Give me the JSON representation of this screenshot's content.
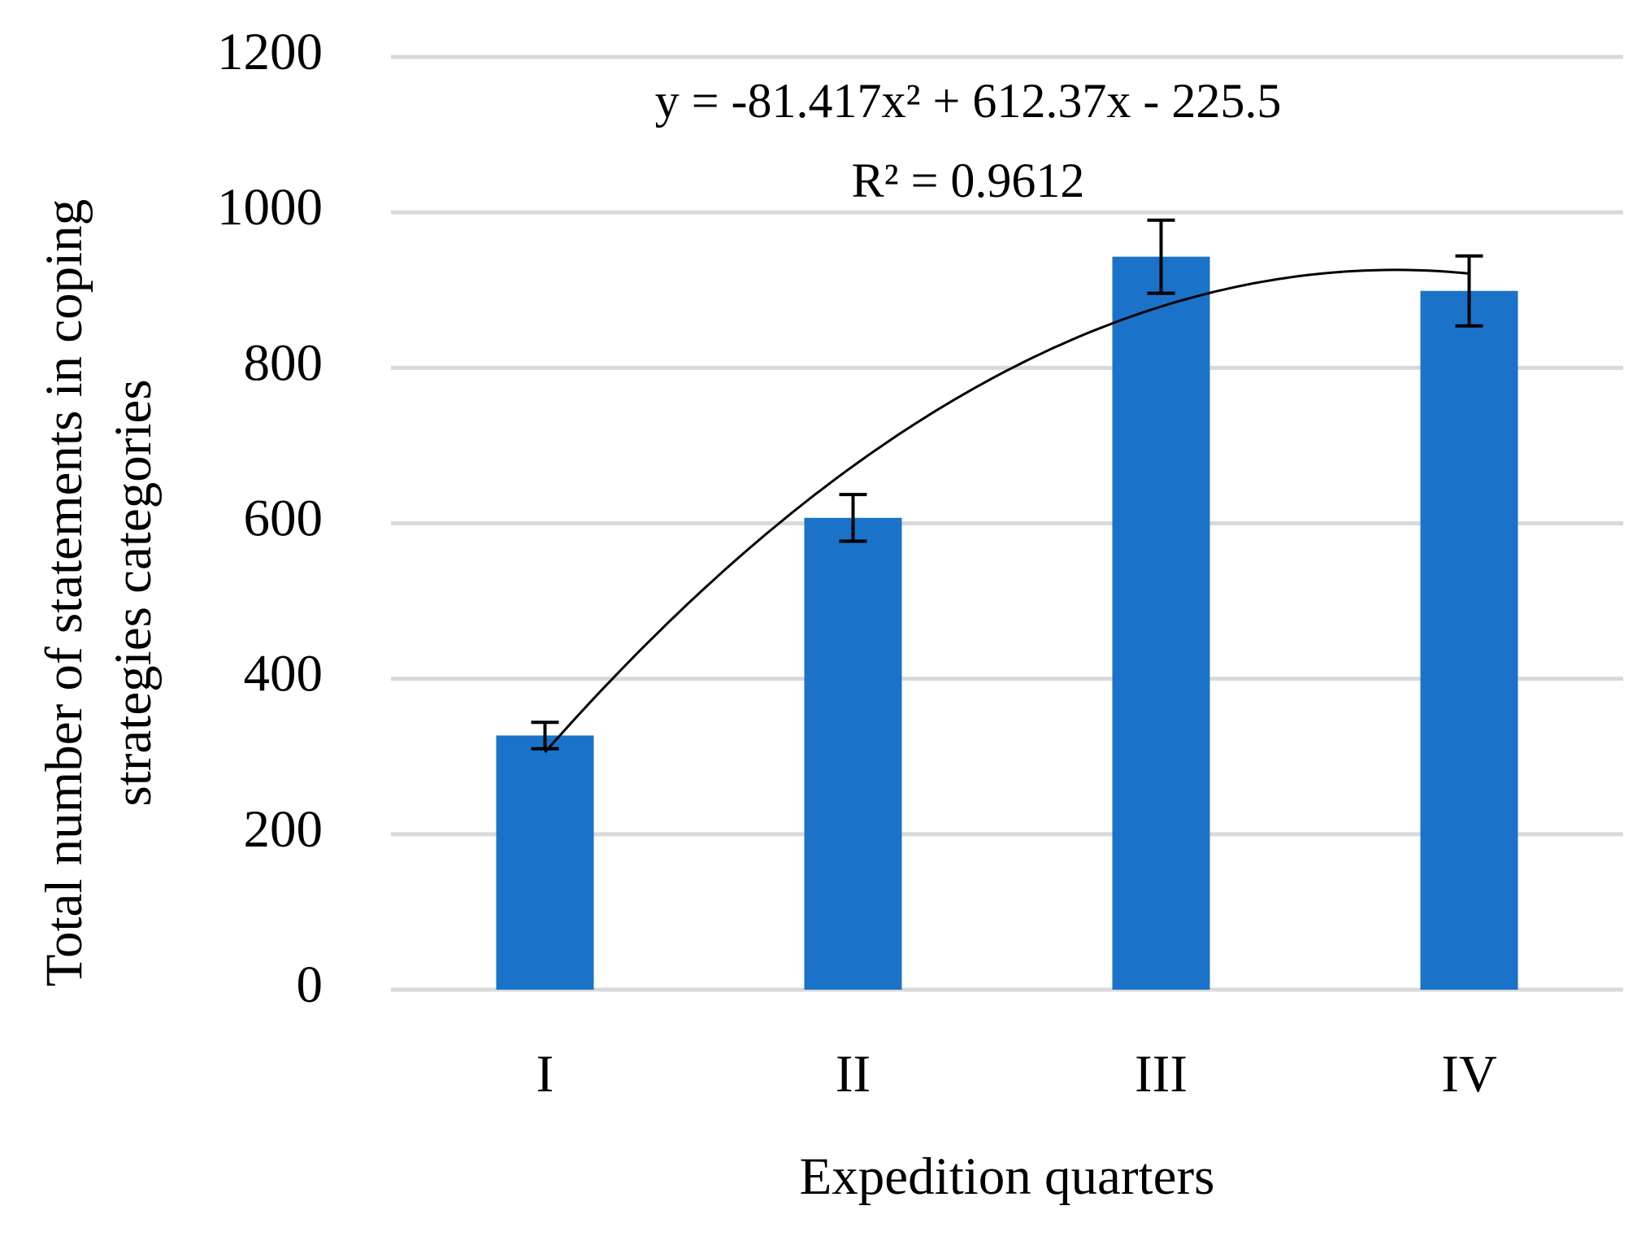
{
  "chart_data": {
    "type": "bar",
    "categories": [
      "I",
      "II",
      "III",
      "IV"
    ],
    "values": [
      327,
      607,
      943,
      899
    ],
    "errors": [
      17,
      30,
      47,
      45
    ],
    "color": "#1a73c8",
    "ylim": [
      0,
      1200
    ],
    "yticks": [
      0,
      200,
      400,
      600,
      800,
      1000,
      1200
    ],
    "grid": true,
    "xlabel": "Expedition quarters",
    "ylabel": [
      "Total number of statements in coping",
      "strategies categories"
    ],
    "trendline": {
      "coefficients": [
        -81.417,
        612.37,
        -225.5
      ],
      "equation": "y = -81.417x² + 612.37x - 225.5",
      "r_squared": "R² = 0.9612"
    }
  }
}
